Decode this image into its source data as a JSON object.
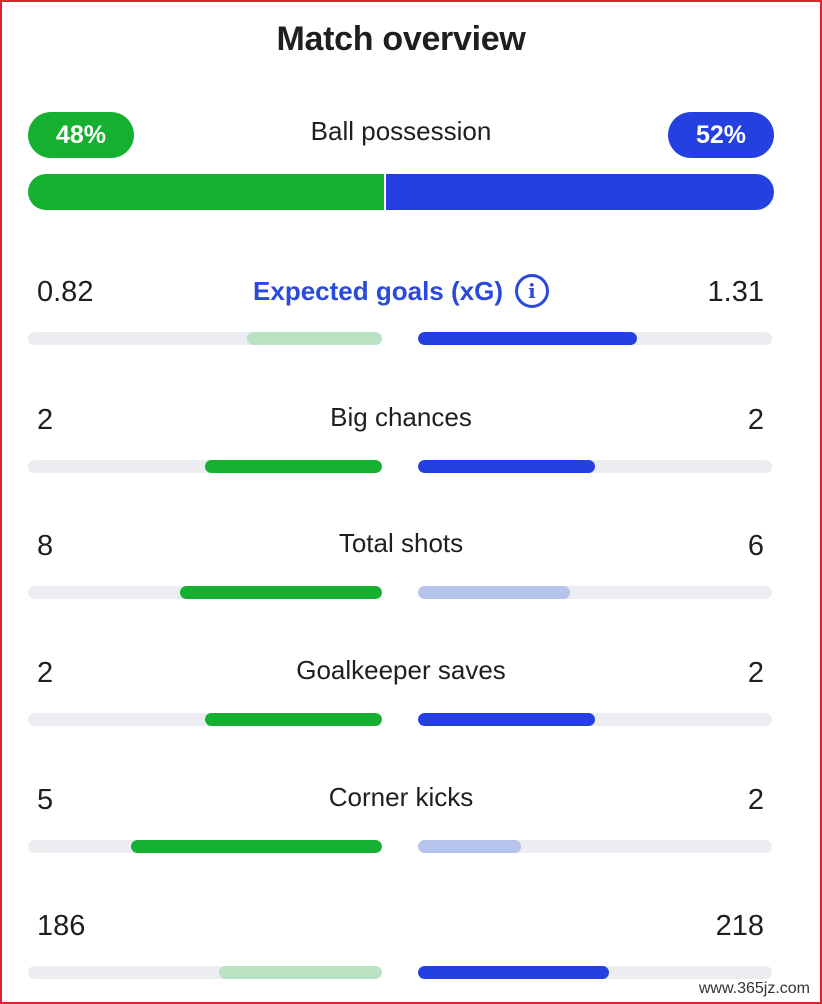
{
  "header": {
    "title": "Match overview"
  },
  "colors": {
    "home": "#16b030",
    "home_light": "#b9e2c3",
    "away": "#2540e0",
    "away_light": "#b6c3ea",
    "track": "#ebedf0",
    "link": "#2a4ad9"
  },
  "possession": {
    "label": "Ball possession",
    "home_value": "48%",
    "away_value": "52%",
    "home_fraction": 0.48,
    "away_fraction": 0.52
  },
  "stats": [
    {
      "label": "Expected goals (xG)",
      "home_value": "0.82",
      "away_value": "1.31",
      "home_fill": 0.38,
      "away_fill": 0.62,
      "home_highlight": false,
      "away_highlight": true,
      "is_link": true,
      "icon": "info-icon"
    },
    {
      "label": "Big chances",
      "home_value": "2",
      "away_value": "2",
      "home_fill": 0.5,
      "away_fill": 0.5,
      "home_highlight": true,
      "away_highlight": true,
      "is_link": false
    },
    {
      "label": "Total shots",
      "home_value": "8",
      "away_value": "6",
      "home_fill": 0.57,
      "away_fill": 0.43,
      "home_highlight": true,
      "away_highlight": false,
      "is_link": false
    },
    {
      "label": "Goalkeeper saves",
      "home_value": "2",
      "away_value": "2",
      "home_fill": 0.5,
      "away_fill": 0.5,
      "home_highlight": true,
      "away_highlight": true,
      "is_link": false
    },
    {
      "label": "Corner kicks",
      "home_value": "5",
      "away_value": "2",
      "home_fill": 0.71,
      "away_fill": 0.29,
      "home_highlight": true,
      "away_highlight": false,
      "is_link": false
    },
    {
      "label": "",
      "home_value": "186",
      "away_value": "218",
      "home_fill": 0.46,
      "away_fill": 0.54,
      "home_highlight": false,
      "away_highlight": true,
      "is_link": false
    }
  ],
  "watermark": "www.365jz.com"
}
